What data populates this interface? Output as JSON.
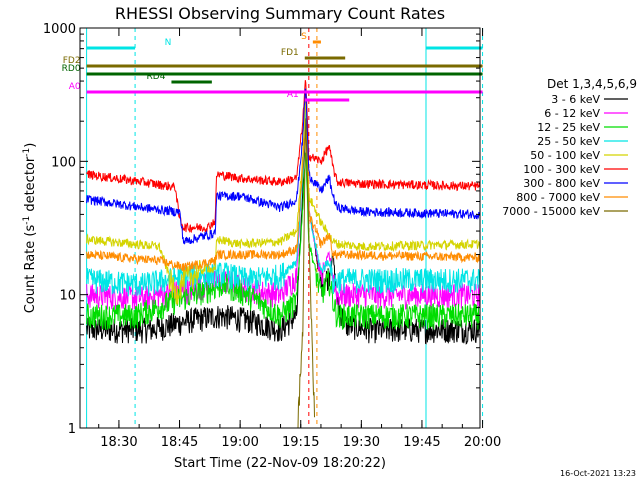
{
  "chart_data": {
    "type": "line",
    "title": "RHESSI Observing Summary Count Rates",
    "ylabel_main": "Count Rate (s",
    "ylabel_sup1": "-1",
    "ylabel_mid": " detector",
    "ylabel_sup2": "-1",
    "ylabel_end": ")",
    "xlabel": "Start Time (22-Nov-09 18:20:22)",
    "timestamp": "16-Oct-2021 13:23",
    "y_scale": "log",
    "ylim": [
      1,
      1000
    ],
    "xlim": [
      "18:20:22",
      "19:59:22"
    ],
    "x_ticks": [
      "18:30",
      "18:45",
      "19:00",
      "19:15",
      "19:30",
      "19:45",
      "20:00"
    ],
    "x_tick_minutes": [
      610,
      625,
      640,
      655,
      670,
      685,
      700
    ],
    "y_ticks": [
      {
        "label": "1",
        "value": 1
      },
      {
        "label": "10",
        "value": 10
      },
      {
        "label": "100",
        "value": 100
      },
      {
        "label": "1000",
        "value": 1000
      }
    ],
    "legend_title": "Det 1,3,4,5,6,9",
    "legend_placement": "right",
    "series": [
      {
        "name": "3 - 6 keV",
        "color": "#000000",
        "keys": [
          [
            602,
            5.5
          ],
          [
            618,
            5.5
          ],
          [
            628,
            6.5
          ],
          [
            635,
            7.0
          ],
          [
            642,
            6.5
          ],
          [
            650,
            5.5
          ],
          [
            654,
            7
          ],
          [
            655.5,
            60
          ],
          [
            656.2,
            300
          ],
          [
            657,
            45
          ],
          [
            660,
            12
          ],
          [
            662,
            14
          ],
          [
            663,
            20
          ],
          [
            664,
            9
          ],
          [
            666,
            6
          ],
          [
            672,
            5.5
          ],
          [
            700,
            5.5
          ]
        ]
      },
      {
        "name": "6 - 12 keV",
        "color": "#ff00ff",
        "keys": [
          [
            602,
            10
          ],
          [
            616,
            9.5
          ],
          [
            628,
            11
          ],
          [
            636,
            13
          ],
          [
            642,
            11
          ],
          [
            650,
            10
          ],
          [
            654,
            14
          ],
          [
            655.5,
            100
          ],
          [
            656.2,
            300
          ],
          [
            657,
            45
          ],
          [
            660,
            13
          ],
          [
            662,
            20
          ],
          [
            663,
            14
          ],
          [
            664,
            10
          ],
          [
            666,
            10
          ],
          [
            700,
            10
          ]
        ]
      },
      {
        "name": "12 - 25 keV",
        "color": "#00dd00",
        "keys": [
          [
            602,
            7
          ],
          [
            614,
            7
          ],
          [
            628,
            10
          ],
          [
            636,
            12
          ],
          [
            642,
            10
          ],
          [
            650,
            7
          ],
          [
            654,
            9
          ],
          [
            655.5,
            45
          ],
          [
            656.2,
            130
          ],
          [
            657,
            25
          ],
          [
            660,
            10
          ],
          [
            662,
            13
          ],
          [
            663,
            9
          ],
          [
            664,
            7
          ],
          [
            700,
            7
          ]
        ]
      },
      {
        "name": "25 - 50 keV",
        "color": "#00e5e5",
        "keys": [
          [
            602,
            13
          ],
          [
            616,
            12
          ],
          [
            628,
            14
          ],
          [
            636,
            14.5
          ],
          [
            642,
            13
          ],
          [
            650,
            14
          ],
          [
            654,
            18
          ],
          [
            655.5,
            80
          ],
          [
            656.2,
            250
          ],
          [
            657,
            40
          ],
          [
            660,
            15
          ],
          [
            662,
            18
          ],
          [
            663,
            12
          ],
          [
            664,
            13
          ],
          [
            700,
            13
          ]
        ]
      },
      {
        "name": "50 - 100 keV",
        "color": "#d4d400",
        "keys": [
          [
            602,
            26
          ],
          [
            620,
            23
          ],
          [
            624,
            10
          ],
          [
            626,
            13
          ],
          [
            632,
            16
          ],
          [
            633.8,
            15
          ],
          [
            634.2,
            26
          ],
          [
            640,
            24
          ],
          [
            650,
            25
          ],
          [
            654,
            30
          ],
          [
            655.5,
            110
          ],
          [
            656.2,
            320
          ],
          [
            657,
            55
          ],
          [
            660,
            35
          ],
          [
            662,
            28
          ],
          [
            663,
            25
          ],
          [
            664,
            24
          ],
          [
            670,
            23
          ],
          [
            700,
            24
          ]
        ]
      },
      {
        "name": "100 - 300 keV",
        "color": "#ff0000",
        "keys": [
          [
            602,
            80
          ],
          [
            616,
            70
          ],
          [
            624,
            64
          ],
          [
            624.8,
            40
          ],
          [
            626,
            32
          ],
          [
            632,
            32
          ],
          [
            633.8,
            36
          ],
          [
            634.2,
            80
          ],
          [
            640,
            75
          ],
          [
            650,
            70
          ],
          [
            654,
            75
          ],
          [
            655.5,
            200
          ],
          [
            656.2,
            420
          ],
          [
            657,
            110
          ],
          [
            660,
            100
          ],
          [
            662,
            130
          ],
          [
            663,
            90
          ],
          [
            664,
            70
          ],
          [
            670,
            68
          ],
          [
            700,
            65
          ]
        ]
      },
      {
        "name": "300 - 800 keV",
        "color": "#0000ff",
        "keys": [
          [
            602,
            52
          ],
          [
            616,
            45
          ],
          [
            624,
            42
          ],
          [
            625,
            42
          ],
          [
            626,
            25
          ],
          [
            630,
            27
          ],
          [
            633.8,
            29
          ],
          [
            634.2,
            55
          ],
          [
            640,
            55
          ],
          [
            650,
            45
          ],
          [
            654,
            52
          ],
          [
            655.5,
            150
          ],
          [
            656.2,
            380
          ],
          [
            657,
            80
          ],
          [
            660,
            60
          ],
          [
            662,
            75
          ],
          [
            663,
            55
          ],
          [
            664,
            45
          ],
          [
            670,
            42
          ],
          [
            700,
            40
          ]
        ]
      },
      {
        "name": "800 - 7000 keV",
        "color": "#ff8c00",
        "keys": [
          [
            602,
            20
          ],
          [
            620,
            18
          ],
          [
            626,
            16
          ],
          [
            630,
            17
          ],
          [
            633.8,
            18
          ],
          [
            634.2,
            20
          ],
          [
            640,
            20
          ],
          [
            650,
            20
          ],
          [
            654,
            22
          ],
          [
            655.5,
            90
          ],
          [
            656.2,
            200
          ],
          [
            657,
            40
          ],
          [
            660,
            24
          ],
          [
            662,
            28
          ],
          [
            663,
            20
          ],
          [
            664,
            20
          ],
          [
            700,
            19
          ]
        ]
      },
      {
        "name": "7000 - 15000 keV",
        "color": "#7a6a00",
        "keys": [
          [
            654.2,
            1
          ],
          [
            655.5,
            5
          ],
          [
            656.2,
            250
          ],
          [
            657.5,
            8
          ],
          [
            658.5,
            1
          ]
        ]
      }
    ],
    "bars": [
      {
        "label": "N",
        "color": "#00e5e5",
        "segments": [
          [
            602,
            614
          ],
          [
            686,
            700
          ]
        ],
        "y": 48
      },
      {
        "label": "S",
        "color": "#ff8c00",
        "segments": [
          [
            658,
            660
          ]
        ],
        "y": 42
      },
      {
        "label": "FD1",
        "color": "#7a6a00",
        "segments": [
          [
            656,
            666
          ]
        ],
        "y": 58
      },
      {
        "label": "FD2",
        "color": "#7a6a00",
        "segments": [
          [
            602,
            700
          ]
        ],
        "y": 66
      },
      {
        "label": "RD0",
        "color": "#006400",
        "segments": [
          [
            602,
            700
          ]
        ],
        "y": 74
      },
      {
        "label": "RD4",
        "color": "#006400",
        "segments": [
          [
            623,
            633
          ]
        ],
        "y": 82
      },
      {
        "label": "A0",
        "color": "#ff00ff",
        "segments": [
          [
            602,
            700
          ]
        ],
        "y": 92
      },
      {
        "label": "A1",
        "color": "#ff00ff",
        "segments": [
          [
            656,
            667
          ]
        ],
        "y": 100
      }
    ]
  }
}
